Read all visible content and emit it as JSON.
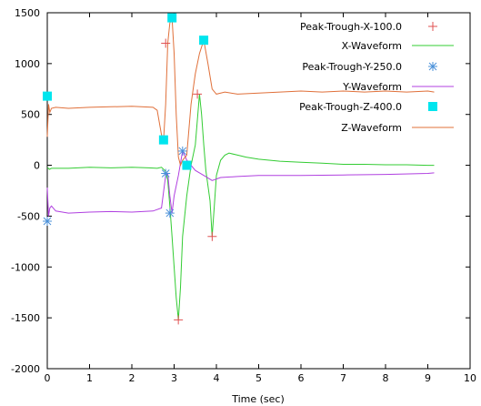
{
  "chart_data": {
    "type": "line",
    "title": "",
    "xlabel": "Time (sec)",
    "ylabel": "",
    "xlim": [
      0,
      10
    ],
    "ylim": [
      -2000,
      1500
    ],
    "xticks": [
      0,
      1,
      2,
      3,
      4,
      5,
      6,
      7,
      8,
      9,
      10
    ],
    "yticks": [
      -2000,
      -1500,
      -1000,
      -500,
      0,
      500,
      1000,
      1500
    ],
    "grid": false,
    "legend_position": "top-right",
    "series": [
      {
        "name": "Peak-Trough-X-100.0",
        "kind": "marker",
        "marker": "plus",
        "color": "#e05050",
        "x": [
          2.8,
          3.1,
          3.55,
          3.9
        ],
        "y": [
          1200,
          -1520,
          700,
          -700
        ]
      },
      {
        "name": "X-Waveform",
        "kind": "line",
        "color": "#33cc33",
        "x": [
          0.0,
          0.05,
          0.1,
          0.5,
          1.0,
          1.5,
          2.0,
          2.4,
          2.6,
          2.7,
          2.8,
          2.85,
          2.9,
          2.95,
          3.0,
          3.05,
          3.1,
          3.15,
          3.2,
          3.3,
          3.4,
          3.5,
          3.55,
          3.6,
          3.65,
          3.7,
          3.75,
          3.8,
          3.85,
          3.9,
          3.95,
          4.0,
          4.1,
          4.2,
          4.3,
          4.5,
          4.7,
          5.0,
          5.5,
          6.0,
          6.5,
          7.0,
          7.5,
          8.0,
          8.5,
          9.0,
          9.15
        ],
        "y": [
          -20,
          -40,
          -30,
          -30,
          -20,
          -25,
          -20,
          -25,
          -30,
          -20,
          -60,
          -150,
          -400,
          -700,
          -1000,
          -1300,
          -1520,
          -1200,
          -700,
          -300,
          0,
          200,
          450,
          700,
          500,
          200,
          -50,
          -200,
          -350,
          -700,
          -400,
          -100,
          50,
          100,
          120,
          100,
          80,
          60,
          40,
          30,
          20,
          10,
          10,
          5,
          5,
          0,
          0
        ]
      },
      {
        "name": "Peak-Trough-Y-250.0",
        "kind": "marker",
        "marker": "star",
        "color": "#4a90d9",
        "x": [
          0.0,
          2.8,
          2.9,
          3.2
        ],
        "y": [
          -550,
          -80,
          -470,
          140
        ]
      },
      {
        "name": "Y-Waveform",
        "kind": "line",
        "color": "#b040e0",
        "x": [
          0.0,
          0.03,
          0.06,
          0.1,
          0.2,
          0.5,
          1.0,
          1.5,
          2.0,
          2.5,
          2.7,
          2.8,
          2.85,
          2.9,
          2.95,
          3.0,
          3.1,
          3.2,
          3.3,
          3.5,
          3.7,
          3.9,
          4.1,
          4.5,
          5.0,
          6.0,
          7.0,
          8.0,
          9.0,
          9.15
        ],
        "y": [
          -220,
          -500,
          -420,
          -400,
          -450,
          -470,
          -460,
          -455,
          -460,
          -450,
          -420,
          -100,
          -80,
          -300,
          -470,
          -300,
          -100,
          140,
          50,
          -50,
          -100,
          -150,
          -120,
          -110,
          -100,
          -100,
          -95,
          -90,
          -80,
          -75
        ]
      },
      {
        "name": "Peak-Trough-Z-400.0",
        "kind": "marker",
        "marker": "square",
        "color": "#00e5ee",
        "x": [
          0.0,
          2.75,
          2.95,
          3.3,
          3.7
        ],
        "y": [
          680,
          250,
          1450,
          0,
          1230
        ]
      },
      {
        "name": "Z-Waveform",
        "kind": "line",
        "color": "#e0703a",
        "x": [
          0.0,
          0.03,
          0.06,
          0.1,
          0.2,
          0.5,
          1.0,
          1.5,
          2.0,
          2.5,
          2.6,
          2.7,
          2.75,
          2.8,
          2.85,
          2.9,
          2.95,
          3.0,
          3.05,
          3.1,
          3.15,
          3.2,
          3.3,
          3.4,
          3.5,
          3.6,
          3.7,
          3.8,
          3.9,
          4.0,
          4.2,
          4.5,
          5.0,
          5.5,
          6.0,
          6.5,
          7.0,
          7.5,
          8.0,
          8.5,
          9.0,
          9.15
        ],
        "y": [
          280,
          600,
          520,
          560,
          570,
          560,
          570,
          575,
          580,
          570,
          540,
          300,
          250,
          600,
          1200,
          1400,
          1450,
          1100,
          500,
          80,
          0,
          50,
          100,
          600,
          900,
          1100,
          1230,
          1000,
          750,
          700,
          720,
          700,
          710,
          720,
          730,
          720,
          730,
          720,
          730,
          720,
          730,
          720
        ]
      }
    ]
  }
}
